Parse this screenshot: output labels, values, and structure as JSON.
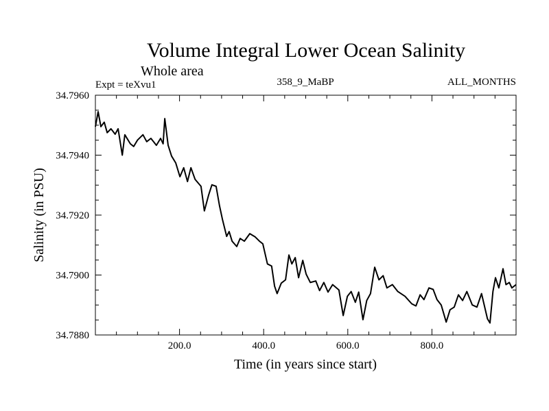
{
  "chart_data": {
    "type": "line",
    "title": "Volume Integral Lower Ocean Salinity",
    "subtitle": "Whole area",
    "annotations": {
      "left": "Expt = teXvu1",
      "center": "358_9_MaBP",
      "right": "ALL_MONTHS"
    },
    "xlabel": "Time (in years since start)",
    "ylabel": "Salinity (in PSU)",
    "xlim": [
      0,
      1000
    ],
    "ylim": [
      34.788,
      34.796
    ],
    "xticks": [
      200,
      400,
      600,
      800
    ],
    "xtick_labels": [
      "200.0",
      "400.0",
      "600.0",
      "800.0"
    ],
    "x_minor_step": 50,
    "yticks": [
      34.788,
      34.79,
      34.792,
      34.794,
      34.796
    ],
    "ytick_labels": [
      "34.7880",
      "34.7900",
      "34.7920",
      "34.7940",
      "34.7960"
    ],
    "y_minor_step": 0.0005,
    "grid": false,
    "legend": "none",
    "series": [
      {
        "name": "Salinity",
        "color": "#000000",
        "x": [
          0,
          6.5,
          13,
          21,
          28,
          37,
          47,
          54,
          64,
          70,
          83,
          91,
          100,
          113,
          122,
          132,
          145,
          155,
          161,
          165,
          173,
          181,
          191,
          201,
          210,
          219,
          227,
          237,
          251,
          259,
          269,
          277,
          287,
          295,
          302,
          312,
          318,
          325,
          336,
          344,
          354,
          367,
          380,
          390,
          398,
          409,
          419,
          426,
          432,
          442,
          452,
          460,
          467,
          475,
          483,
          493,
          501,
          511,
          524,
          533,
          543,
          553,
          564,
          579,
          589,
          599,
          608,
          618,
          626,
          636,
          645,
          654,
          664,
          674,
          684,
          693,
          706,
          719,
          736,
          752,
          762,
          772,
          781,
          793,
          803,
          812,
          822,
          834,
          843,
          853,
          863,
          873,
          883,
          896,
          907,
          918,
          932,
          938,
          945,
          951,
          959,
          969,
          976,
          984,
          990,
          1000
        ],
        "y": [
          34.79495,
          34.79545,
          34.79495,
          34.7951,
          34.79475,
          34.79488,
          34.7947,
          34.79488,
          34.794,
          34.79468,
          34.79438,
          34.79429,
          34.7945,
          34.79468,
          34.79445,
          34.79456,
          34.79433,
          34.79456,
          34.79438,
          34.79522,
          34.79433,
          34.79397,
          34.79374,
          34.79328,
          34.79358,
          34.79312,
          34.79358,
          34.79319,
          34.79296,
          34.79214,
          34.79266,
          34.79301,
          34.79296,
          34.79232,
          34.79186,
          34.79129,
          34.79145,
          34.79113,
          34.79095,
          34.79122,
          34.79113,
          34.79138,
          34.79127,
          34.79113,
          34.79104,
          34.79037,
          34.7903,
          34.78963,
          34.78938,
          34.78973,
          34.78984,
          34.79067,
          34.79037,
          34.79058,
          34.78991,
          34.79049,
          34.79003,
          34.78975,
          34.7898,
          34.78948,
          34.78975,
          34.78943,
          34.78968,
          34.7895,
          34.78865,
          34.78929,
          34.78945,
          34.78909,
          34.78943,
          34.78851,
          34.78915,
          34.78938,
          34.79026,
          34.78984,
          34.78998,
          34.78957,
          34.78968,
          34.78945,
          34.78929,
          34.78904,
          34.78897,
          34.78934,
          34.78918,
          34.78957,
          34.78952,
          34.78918,
          34.789,
          34.78843,
          34.78884,
          34.78893,
          34.78934,
          34.78915,
          34.78945,
          34.789,
          34.78893,
          34.78938,
          34.78854,
          34.7884,
          34.78945,
          34.78991,
          34.78957,
          34.79021,
          34.78968,
          34.78975,
          34.78957,
          34.78968
        ]
      }
    ]
  }
}
